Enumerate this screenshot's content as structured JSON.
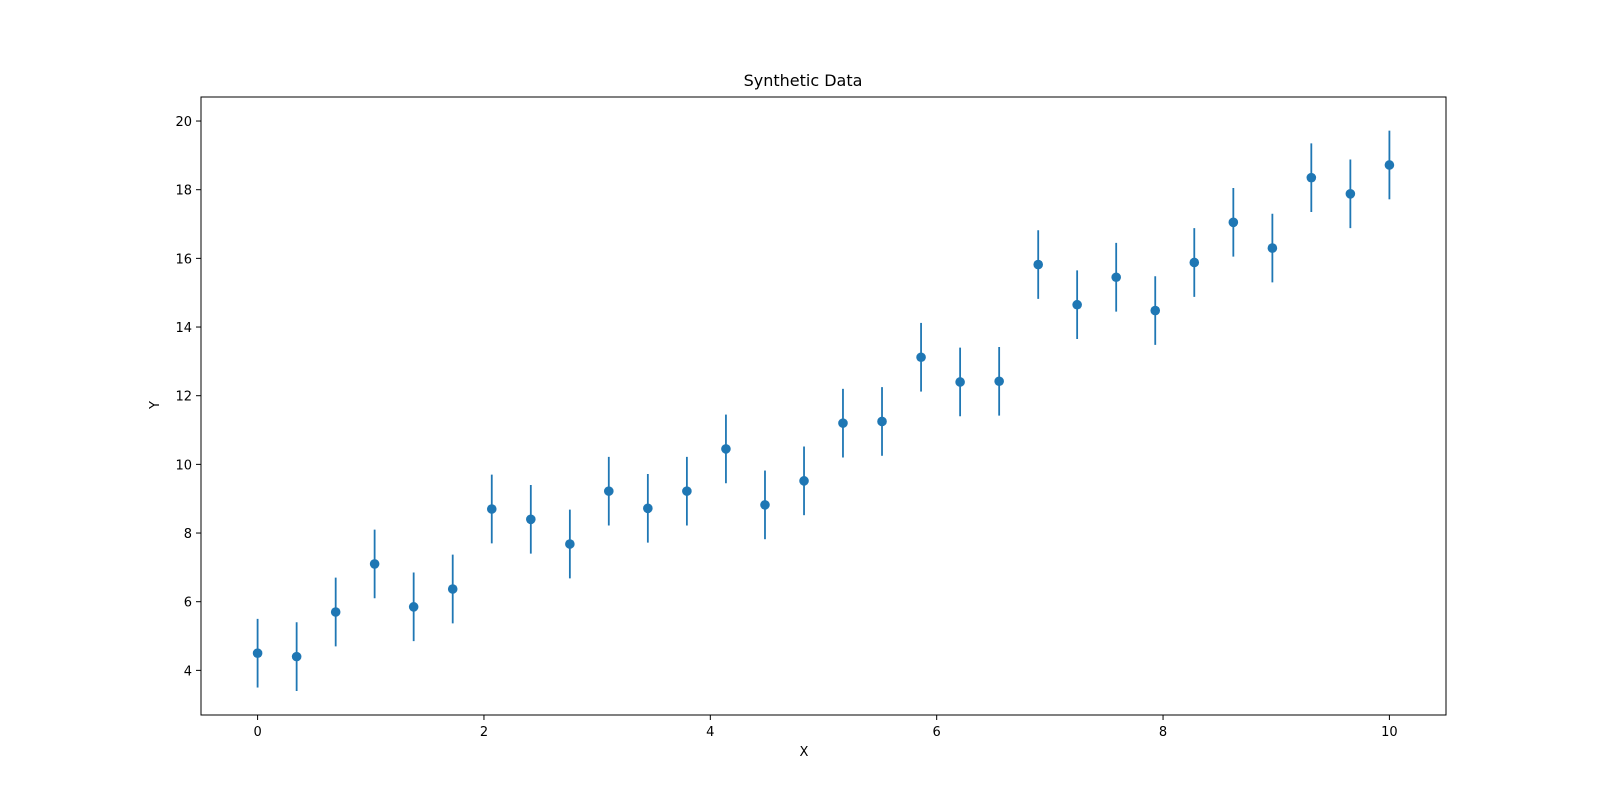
{
  "chart_data": {
    "type": "scatter",
    "title": "Synthetic Data",
    "xlabel": "X",
    "ylabel": "Y",
    "xlim": [
      -0.5,
      10.5
    ],
    "ylim": [
      2.7,
      20.7
    ],
    "x_ticks": [
      0,
      2,
      4,
      6,
      8,
      10
    ],
    "y_ticks": [
      4,
      6,
      8,
      10,
      12,
      14,
      16,
      18,
      20
    ],
    "grid": false,
    "legend": "none",
    "marker_color": "#1f77b4",
    "error_bars": "vertical, ±1.0",
    "series": [
      {
        "x": [
          0.0,
          0.345,
          0.69,
          1.034,
          1.379,
          1.724,
          2.069,
          2.414,
          2.759,
          3.103,
          3.448,
          3.793,
          4.138,
          4.483,
          4.828,
          5.172,
          5.517,
          5.862,
          6.207,
          6.552,
          6.897,
          7.241,
          7.586,
          7.931,
          8.276,
          8.621,
          8.966,
          9.31,
          9.655,
          10.0
        ],
        "y": [
          4.5,
          4.4,
          5.7,
          7.1,
          5.85,
          6.37,
          8.7,
          8.4,
          7.68,
          9.22,
          8.72,
          9.22,
          10.45,
          8.82,
          9.52,
          11.2,
          11.25,
          13.12,
          12.4,
          12.42,
          15.82,
          14.65,
          15.45,
          14.48,
          15.88,
          17.05,
          16.3,
          18.35,
          17.88,
          18.72
        ],
        "yerr": [
          1.0,
          1.0,
          1.0,
          1.0,
          1.0,
          1.0,
          1.0,
          1.0,
          1.0,
          1.0,
          1.0,
          1.0,
          1.0,
          1.0,
          1.0,
          1.0,
          1.0,
          1.0,
          1.0,
          1.0,
          1.0,
          1.0,
          1.0,
          1.0,
          1.0,
          1.0,
          1.0,
          1.0,
          1.0,
          1.0
        ]
      }
    ]
  }
}
